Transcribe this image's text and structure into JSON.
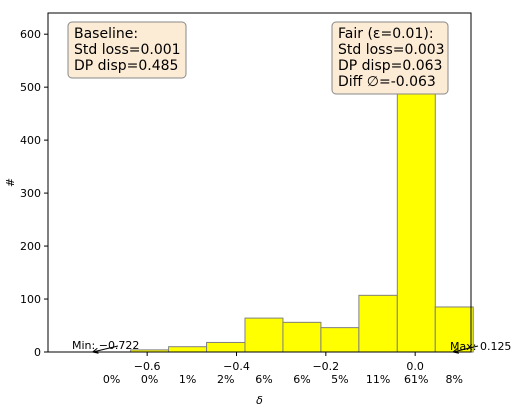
{
  "colors": {
    "bar_fill": "#ffff00",
    "bar_edge": "#808080",
    "box_fill": "#fcebd5",
    "box_edge": "#888888",
    "axes": "#000000"
  },
  "chart_data": {
    "type": "bar",
    "xlabel": "δ",
    "ylabel": "#",
    "xlim": [
      -0.822,
      0.125
    ],
    "ylim": [
      0,
      640
    ],
    "grid": false,
    "x_ticks": [
      {
        "value": -0.6,
        "label": "−0.6"
      },
      {
        "value": -0.4,
        "label": "−0.4"
      },
      {
        "value": -0.2,
        "label": "−0.2"
      },
      {
        "value": 0.0,
        "label": "0.0"
      }
    ],
    "y_ticks": [
      {
        "value": 0,
        "label": "0"
      },
      {
        "value": 100,
        "label": "100"
      },
      {
        "value": 200,
        "label": "200"
      },
      {
        "value": 300,
        "label": "300"
      },
      {
        "value": 400,
        "label": "400"
      },
      {
        "value": 500,
        "label": "500"
      },
      {
        "value": 600,
        "label": "600"
      }
    ],
    "bins": [
      {
        "x0": -0.722,
        "x1": -0.637,
        "count": 0,
        "pct": "0%"
      },
      {
        "x0": -0.637,
        "x1": -0.552,
        "count": 4,
        "pct": "0%"
      },
      {
        "x0": -0.552,
        "x1": -0.467,
        "count": 10,
        "pct": "1%"
      },
      {
        "x0": -0.467,
        "x1": -0.381,
        "count": 18,
        "pct": "2%"
      },
      {
        "x0": -0.381,
        "x1": -0.296,
        "count": 64,
        "pct": "6%"
      },
      {
        "x0": -0.296,
        "x1": -0.211,
        "count": 56,
        "pct": "6%"
      },
      {
        "x0": -0.211,
        "x1": -0.126,
        "count": 46,
        "pct": "5%"
      },
      {
        "x0": -0.126,
        "x1": -0.04,
        "count": 107,
        "pct": "11%"
      },
      {
        "x0": -0.04,
        "x1": 0.045,
        "count": 610,
        "pct": "61%"
      },
      {
        "x0": 0.045,
        "x1": 0.13,
        "count": 85,
        "pct": "8%"
      }
    ],
    "baseline_box": [
      "Baseline:",
      "Std loss=0.001",
      "DP disp=0.485"
    ],
    "fair_box": [
      "Fair (ε=0.01):",
      "Std loss=0.003",
      "DP disp=0.063",
      "Diff ∅=-0.063"
    ],
    "min_annotation": {
      "text": "Min: −0.722",
      "value": -0.722
    },
    "max_annotation": {
      "text": "Max: 0.125",
      "value": 0.125
    }
  }
}
